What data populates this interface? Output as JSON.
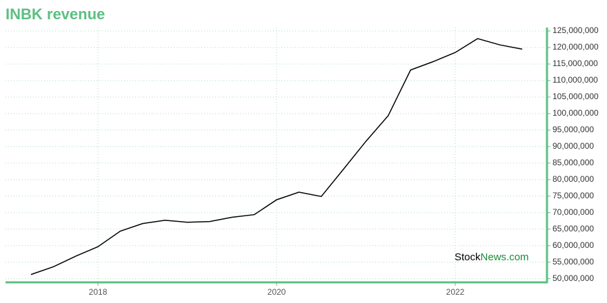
{
  "chart_data": {
    "type": "line",
    "title": "INBK revenue",
    "x": [
      2017.25,
      2017.5,
      2017.75,
      2018,
      2018.25,
      2018.5,
      2018.75,
      2019,
      2019.25,
      2019.5,
      2019.75,
      2020,
      2020.25,
      2020.5,
      2020.75,
      2021,
      2021.25,
      2021.5,
      2021.75,
      2022,
      2022.25,
      2022.5,
      2022.75
    ],
    "series": [
      {
        "name": "INBK revenue",
        "color": "#000000",
        "values": [
          51270000,
          53600000,
          56800000,
          59700000,
          64400000,
          66700000,
          67700000,
          67100000,
          67300000,
          68600000,
          69400000,
          73900000,
          76200000,
          74900000,
          83200000,
          91600000,
          99400000,
          113200000,
          115700000,
          118500000,
          122700000,
          120800000,
          119500000
        ]
      }
    ],
    "xlim": [
      2016.965,
      2023.027
    ],
    "xticks": [
      2018,
      2020,
      2022
    ],
    "ylim": [
      48900000,
      126050000
    ],
    "yticks": [
      {
        "value": 50000000,
        "label": "50,000,000"
      },
      {
        "value": 55000000,
        "label": "55,000,000"
      },
      {
        "value": 60000000,
        "label": "60,000,000"
      },
      {
        "value": 65000000,
        "label": "65,000,000"
      },
      {
        "value": 70000000,
        "label": "70,000,000"
      },
      {
        "value": 75000000,
        "label": "75,000,000"
      },
      {
        "value": 80000000,
        "label": "80,000,000"
      },
      {
        "value": 85000000,
        "label": "85,000,000"
      },
      {
        "value": 90000000,
        "label": "90,000,000"
      },
      {
        "value": 95000000,
        "label": "95,000,000"
      },
      {
        "value": 100000000,
        "label": "100,000,000"
      },
      {
        "value": 105000000,
        "label": "105,000,000"
      },
      {
        "value": 110000000,
        "label": "110,000,000"
      },
      {
        "value": 115000000,
        "label": "115,000,000"
      },
      {
        "value": 120000000,
        "label": "120,000,000"
      },
      {
        "value": 125000000,
        "label": "125,000,000"
      }
    ],
    "grid": true,
    "watermark": [
      "Stock",
      "News.com"
    ]
  }
}
